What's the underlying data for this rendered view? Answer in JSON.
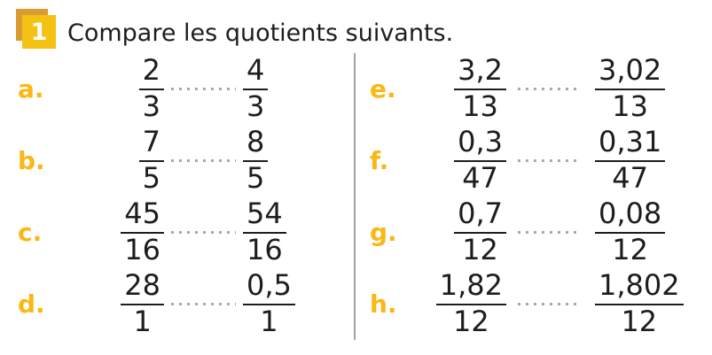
{
  "header": {
    "badge_number": "1",
    "title": "Compare les quotients suivants."
  },
  "colors": {
    "badge_front_yellow": "#f5c113",
    "badge_back_amber": "#d89c33",
    "item_label_yellow": "#fbb713",
    "text_dark": "#1d1d1b",
    "dots_gray": "#a8a8a8",
    "divider_gray": "#a3a3a3"
  },
  "columns": [
    {
      "items": [
        {
          "label": "a.",
          "q1": {
            "num": "2",
            "den": "3"
          },
          "q2": {
            "num": "4",
            "den": "3"
          }
        },
        {
          "label": "b.",
          "q1": {
            "num": "7",
            "den": "5"
          },
          "q2": {
            "num": "8",
            "den": "5"
          }
        },
        {
          "label": "c.",
          "q1": {
            "num": "45",
            "den": "16"
          },
          "q2": {
            "num": "54",
            "den": "16"
          }
        },
        {
          "label": "d.",
          "q1": {
            "num": "28",
            "den": "1"
          },
          "q2": {
            "num": "0,5",
            "den": "1"
          }
        }
      ]
    },
    {
      "items": [
        {
          "label": "e.",
          "q1": {
            "num": "3,2",
            "den": "13"
          },
          "q2": {
            "num": "3,02",
            "den": "13"
          }
        },
        {
          "label": "f.",
          "q1": {
            "num": "0,3",
            "den": "47"
          },
          "q2": {
            "num": "0,31",
            "den": "47"
          }
        },
        {
          "label": "g.",
          "q1": {
            "num": "0,7",
            "den": "12"
          },
          "q2": {
            "num": "0,08",
            "den": "12"
          }
        },
        {
          "label": "h.",
          "q1": {
            "num": "1,82",
            "den": "12"
          },
          "q2": {
            "num": "1,802",
            "den": "12"
          }
        }
      ]
    }
  ]
}
